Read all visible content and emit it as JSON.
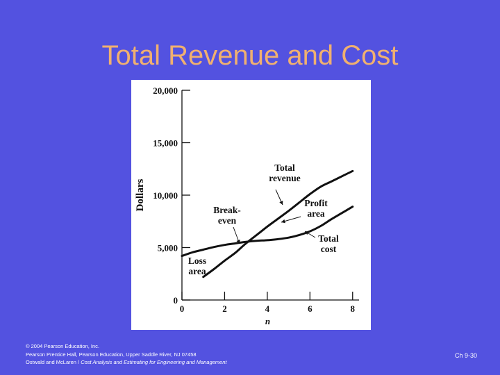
{
  "slide": {
    "title": "Total Revenue and Cost",
    "footer": {
      "line1": "© 2004 Pearson Education, Inc.",
      "line2": "Pearson Prentice Hall, Pearson Education, Upper Saddle River, NJ 07458",
      "line3_prefix": "Ostwald and McLaren / ",
      "line3_italic": "Cost Analysis and Estimating for Engineering and Management"
    },
    "slide_number": "Ch 9-30"
  },
  "chart_data": {
    "type": "line",
    "xlabel": "n",
    "ylabel": "Dollars",
    "xlim": [
      0,
      8.3
    ],
    "ylim": [
      0,
      20000
    ],
    "x_ticks": [
      0,
      2,
      4,
      6,
      8
    ],
    "y_ticks": [
      0,
      5000,
      10000,
      15000,
      20000
    ],
    "y_tick_labels": [
      "0",
      "5,000",
      "10,000",
      "15,000",
      "20,000"
    ],
    "grid": false,
    "series": [
      {
        "name": "Total revenue",
        "x": [
          1,
          1.5,
          2,
          2.5,
          3,
          3.5,
          4,
          4.5,
          5,
          5.5,
          6,
          6.5,
          7,
          7.5,
          8
        ],
        "y": [
          2200,
          2950,
          3750,
          4500,
          5400,
          6200,
          7000,
          7750,
          8500,
          9300,
          10100,
          10800,
          11300,
          11800,
          12300
        ]
      },
      {
        "name": "Total cost",
        "x": [
          0,
          0.5,
          1,
          1.5,
          2,
          2.5,
          3,
          3.5,
          4,
          4.5,
          5,
          5.5,
          6,
          6.5,
          7,
          7.5,
          8
        ],
        "y": [
          4200,
          4550,
          4800,
          5050,
          5250,
          5400,
          5550,
          5650,
          5700,
          5800,
          5950,
          6200,
          6550,
          7050,
          7700,
          8300,
          8900
        ]
      }
    ],
    "annotations": [
      {
        "lines": [
          "Total",
          "revenue"
        ]
      },
      {
        "lines": [
          "Profit",
          "area"
        ]
      },
      {
        "lines": [
          "Break-",
          "even"
        ]
      },
      {
        "lines": [
          "Total",
          "cost"
        ]
      },
      {
        "lines": [
          "Loss",
          "area"
        ]
      }
    ]
  }
}
